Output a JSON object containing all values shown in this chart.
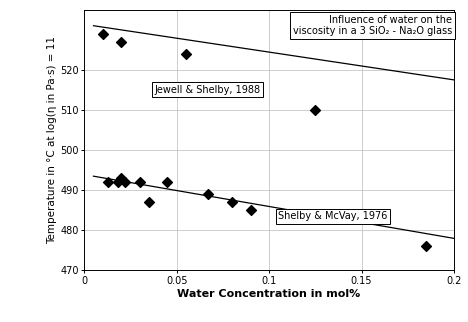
{
  "title": "Influence of water on the\nviscosity in a 3 SiO₂ - Na₂O glass",
  "xlabel": "Water Concentration in mol%",
  "ylabel": "Temperature in °C at log(η in Pa·s) = 11",
  "xlim": [
    0,
    0.2
  ],
  "ylim": [
    470,
    535
  ],
  "yticks": [
    470,
    480,
    490,
    500,
    510,
    520
  ],
  "xticks": [
    0,
    0.05,
    0.1,
    0.15,
    0.2
  ],
  "xtick_labels": [
    "0",
    "0.05",
    "0.1",
    "0.15",
    "0.2"
  ],
  "series1_label": "Jewell & Shelby, 1988",
  "series1_x": [
    0.01,
    0.02,
    0.055,
    0.125
  ],
  "series1_y": [
    529,
    527,
    524,
    510
  ],
  "series1_trendline_x": [
    0.005,
    0.2
  ],
  "series1_trendline_y": [
    531.0,
    517.5
  ],
  "series2_label": "Shelby & McVay, 1976",
  "series2_x": [
    0.013,
    0.018,
    0.02,
    0.022,
    0.03,
    0.035,
    0.045,
    0.067,
    0.08,
    0.09,
    0.185
  ],
  "series2_y": [
    492,
    492,
    493,
    492,
    492,
    487,
    492,
    489,
    487,
    485,
    476
  ],
  "series2_trendline_x": [
    0.005,
    0.2
  ],
  "series2_trendline_y": [
    493.5,
    478.0
  ],
  "marker_color": "#000000",
  "marker_size": 5,
  "line_color": "#000000",
  "bg_color": "#ffffff",
  "grid_color": "#bbbbbb",
  "annotation_box_color": "#ffffff",
  "tick_fontsize": 7,
  "label_fontsize": 7.5,
  "xlabel_fontsize": 8,
  "title_fontsize": 7
}
